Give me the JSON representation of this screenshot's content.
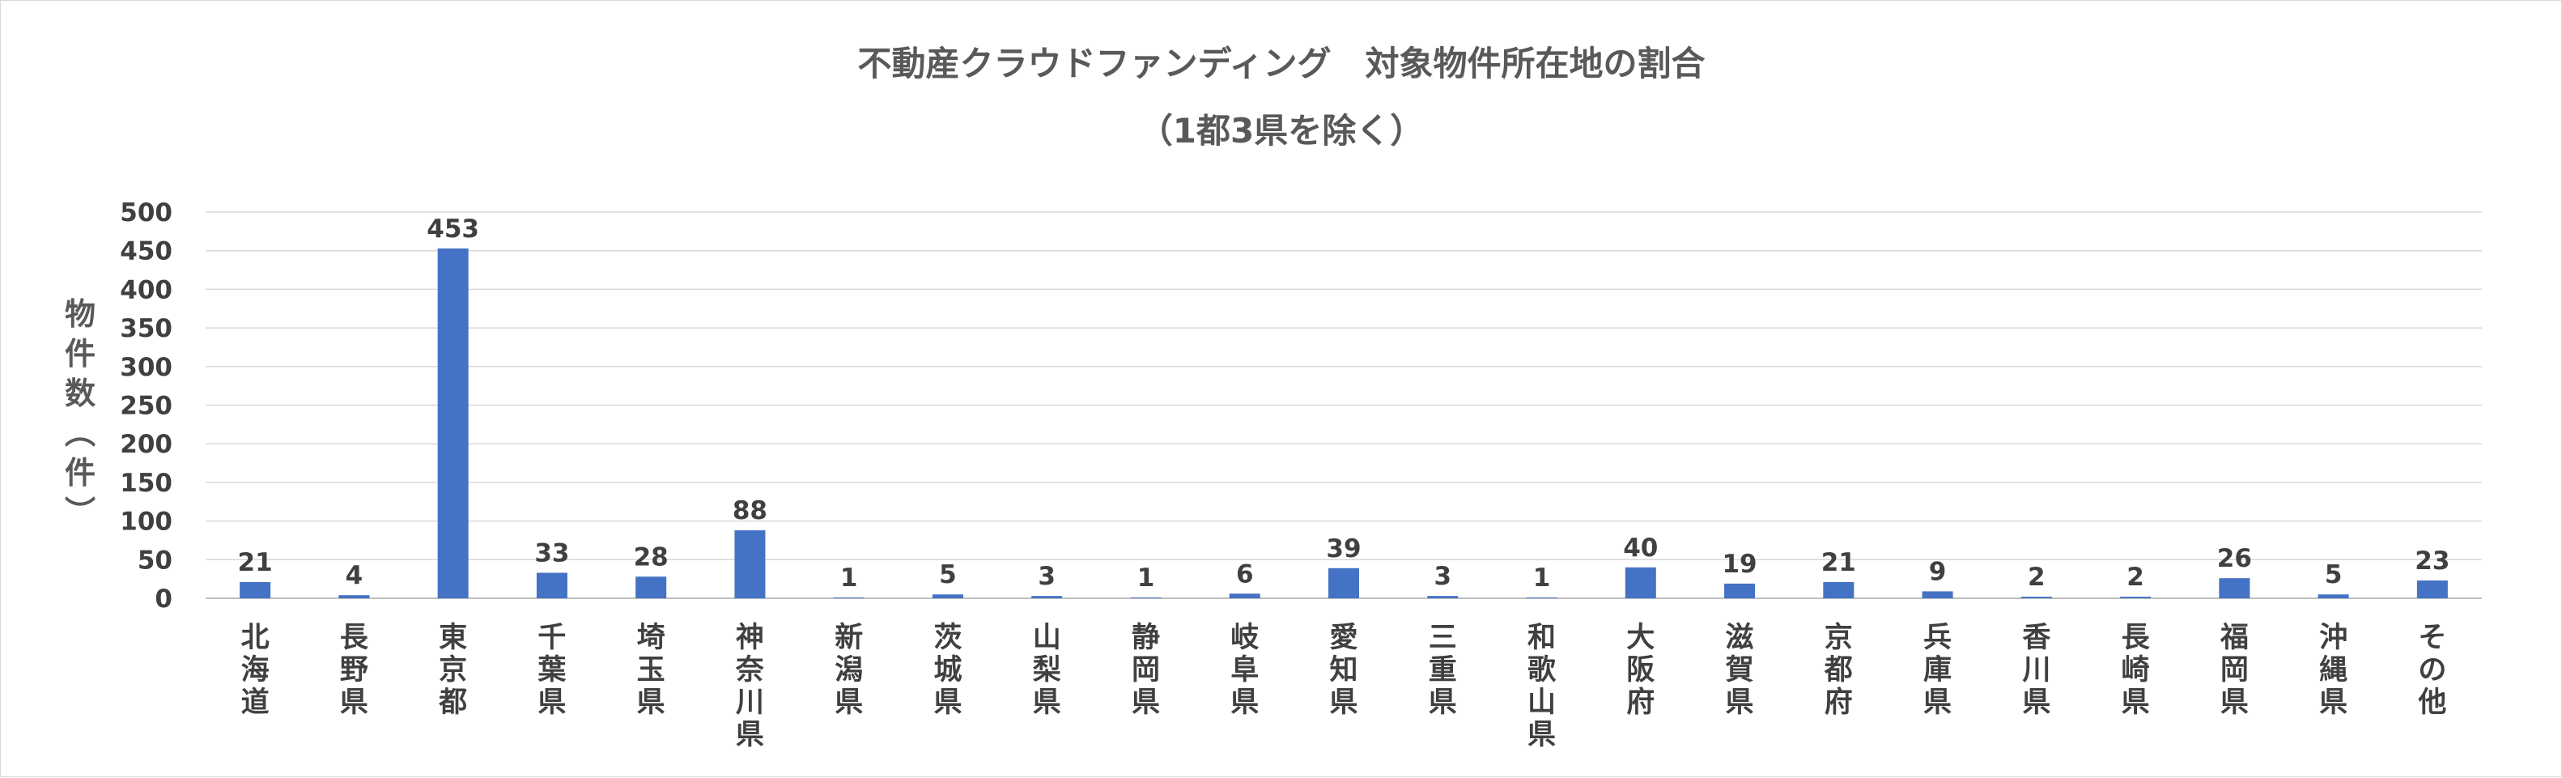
{
  "chart_data": {
    "type": "bar",
    "title": "不動産クラウドファンディング　対象物件所在地の割合",
    "subtitle": "（1都3県を除く）",
    "ylabel": "物件数（件）",
    "xlabel": "",
    "ylim": [
      0,
      500
    ],
    "yticks": [
      0,
      50,
      100,
      150,
      200,
      250,
      300,
      350,
      400,
      450,
      500
    ],
    "grid": true,
    "bar_color": "#4472C4",
    "categories": [
      "北海道",
      "長野県",
      "東京都",
      "千葉県",
      "埼玉県",
      "神奈川県",
      "新潟県",
      "茨城県",
      "山梨県",
      "静岡県",
      "岐阜県",
      "愛知県",
      "三重県",
      "和歌山県",
      "大阪府",
      "滋賀県",
      "京都府",
      "兵庫県",
      "香川県",
      "長崎県",
      "福岡県",
      "沖縄県",
      "その他"
    ],
    "values": [
      21,
      4,
      453,
      33,
      28,
      88,
      1,
      5,
      3,
      1,
      6,
      39,
      3,
      1,
      40,
      19,
      21,
      9,
      2,
      2,
      26,
      5,
      23
    ]
  }
}
